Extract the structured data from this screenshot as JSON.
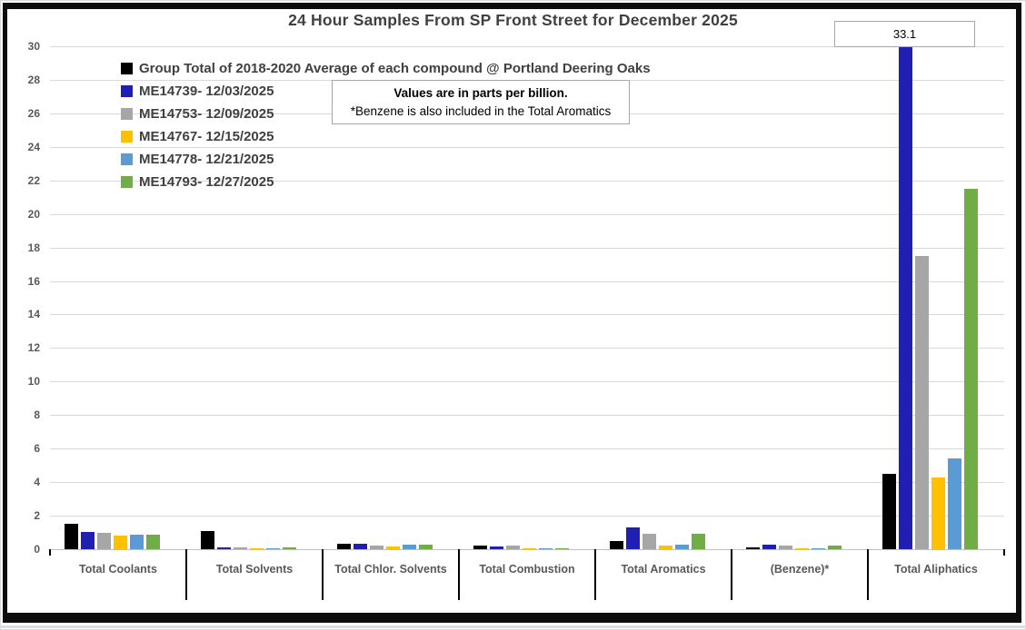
{
  "window": {
    "bottom_strip_color": "#d9dde4",
    "border_color": "#0d0d0d"
  },
  "chart_data": {
    "type": "bar",
    "title": "24 Hour Samples From SP Front Street for December 2025",
    "note_line1": "Values are in parts per billion.",
    "note_line2": "*Benzene is also included in the Total Aromatics",
    "annotation": {
      "text": "33.1",
      "value": 33.1,
      "series": "ME14739- 12/03/2025",
      "category": "Total Aliphatics"
    },
    "categories": [
      "Total Coolants",
      "Total Solvents",
      "Total Chlor. Solvents",
      "Total Combustion",
      "Total Aromatics",
      "(Benzene)*",
      "Total Aliphatics"
    ],
    "series": [
      {
        "name": "Group Total of 2018-2020 Average of each compound @ Portland Deering Oaks",
        "color": "#000000",
        "values": [
          1.5,
          1.1,
          0.3,
          0.22,
          0.5,
          0.13,
          4.5
        ]
      },
      {
        "name": "ME14739- 12/03/2025",
        "color": "#1F1FB4",
        "values": [
          1.05,
          0.12,
          0.32,
          0.14,
          1.3,
          0.25,
          33.1
        ]
      },
      {
        "name": "ME14753- 12/09/2025",
        "color": "#A6A6A6",
        "values": [
          0.95,
          0.1,
          0.22,
          0.2,
          0.9,
          0.2,
          17.5
        ]
      },
      {
        "name": "ME14767- 12/15/2025",
        "color": "#FFC000",
        "values": [
          0.8,
          0.06,
          0.18,
          0.02,
          0.2,
          0.07,
          4.3
        ]
      },
      {
        "name": "ME14778- 12/21/2025",
        "color": "#5B9BD5",
        "values": [
          0.85,
          0.05,
          0.27,
          0.08,
          0.28,
          0.07,
          5.4
        ]
      },
      {
        "name": "ME14793- 12/27/2025",
        "color": "#70AD47",
        "values": [
          0.85,
          0.1,
          0.27,
          0.08,
          0.9,
          0.2,
          21.5
        ]
      }
    ],
    "ylim": [
      0,
      30
    ],
    "yticks": [
      0,
      2,
      4,
      6,
      8,
      10,
      12,
      14,
      16,
      18,
      20,
      22,
      24,
      26,
      28,
      30
    ],
    "clip_max": 30,
    "grid": true,
    "legend_position": "top-left-inside",
    "grid_color": "#d9d9d9",
    "axis_color": "#bfbfbf",
    "text_color": "#595959",
    "title_color": "#404040"
  }
}
